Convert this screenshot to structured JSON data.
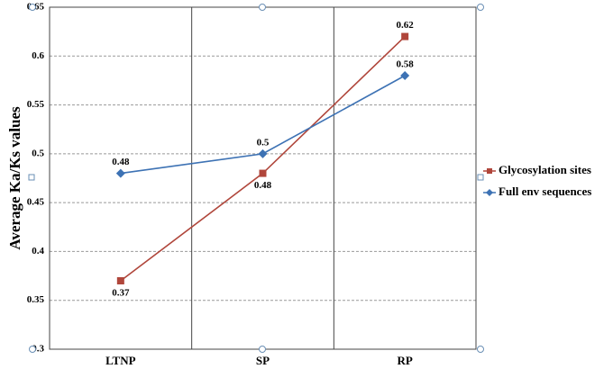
{
  "chart_data": {
    "type": "line",
    "y_label": "Average Ka/Ks values",
    "categories": [
      "LTNP",
      "SP",
      "RP"
    ],
    "series": [
      {
        "name": "Glycosylation sites",
        "color": "#b0463b",
        "marker": "square",
        "values": [
          0.37,
          0.48,
          0.62
        ]
      },
      {
        "name": "Full env sequences",
        "color": "#3d72b4",
        "marker": "diamond",
        "values": [
          0.48,
          0.5,
          0.58
        ]
      }
    ],
    "ylim": [
      0.3,
      0.65
    ],
    "yticks": [
      0.3,
      0.35,
      0.4,
      0.45,
      0.5,
      0.55,
      0.6,
      0.65
    ],
    "grid": true,
    "legend": "right"
  }
}
